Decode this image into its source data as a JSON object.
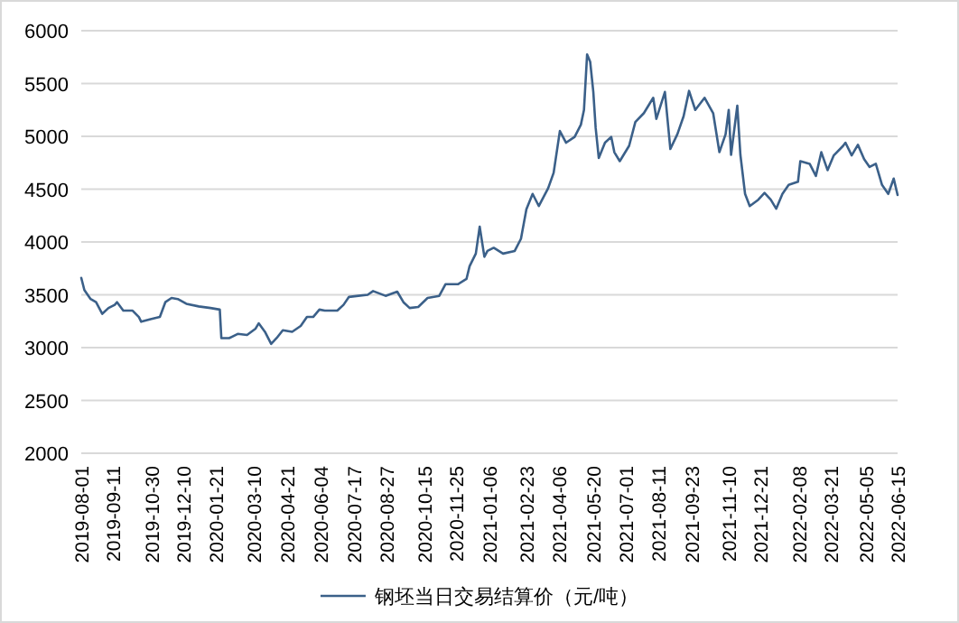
{
  "chart_data": {
    "type": "line",
    "xlim": [
      "2019-08-01",
      "2022-06-15"
    ],
    "ylim": [
      2000,
      6000
    ],
    "yticks": [
      2000,
      2500,
      3000,
      3500,
      4000,
      4500,
      5000,
      5500,
      6000
    ],
    "xticks": [
      "2019-08-01",
      "2019-09-11",
      "2019-10-30",
      "2019-12-10",
      "2020-01-21",
      "2020-03-10",
      "2020-04-21",
      "2020-06-04",
      "2020-07-17",
      "2020-08-27",
      "2020-10-15",
      "2020-11-25",
      "2021-01-06",
      "2021-02-23",
      "2021-04-06",
      "2021-05-20",
      "2021-07-01",
      "2021-08-11",
      "2021-09-23",
      "2021-11-10",
      "2021-12-21",
      "2022-02-08",
      "2022-03-21",
      "2022-05-05",
      "2022-06-15"
    ],
    "grid": "y",
    "legend": "bottom",
    "x": [
      "2019-08-01",
      "2019-08-05",
      "2019-08-13",
      "2019-08-20",
      "2019-08-28",
      "2019-09-05",
      "2019-09-13",
      "2019-09-16",
      "2019-09-24",
      "2019-10-06",
      "2019-10-14",
      "2019-10-17",
      "2019-10-29",
      "2019-11-10",
      "2019-11-17",
      "2019-11-25",
      "2019-12-03",
      "2019-12-14",
      "2019-12-30",
      "2020-01-14",
      "2020-01-26",
      "2020-01-28",
      "2020-02-07",
      "2020-02-18",
      "2020-03-01",
      "2020-03-12",
      "2020-03-16",
      "2020-03-24",
      "2020-04-01",
      "2020-04-08",
      "2020-04-16",
      "2020-04-28",
      "2020-05-09",
      "2020-05-17",
      "2020-05-25",
      "2020-06-02",
      "2020-06-09",
      "2020-06-25",
      "2020-07-03",
      "2020-07-10",
      "2020-07-22",
      "2020-08-03",
      "2020-08-10",
      "2020-08-26",
      "2020-09-10",
      "2020-09-18",
      "2020-09-26",
      "2020-10-07",
      "2020-10-19",
      "2020-11-03",
      "2020-11-11",
      "2020-11-27",
      "2020-12-08",
      "2020-12-12",
      "2020-12-20",
      "2020-12-25",
      "2020-12-31",
      "2021-01-04",
      "2021-01-12",
      "2021-01-24",
      "2021-02-08",
      "2021-02-16",
      "2021-02-23",
      "2021-03-03",
      "2021-03-11",
      "2021-03-23",
      "2021-03-30",
      "2021-04-07",
      "2021-04-15",
      "2021-04-26",
      "2021-05-04",
      "2021-05-08",
      "2021-05-12",
      "2021-05-16",
      "2021-05-20",
      "2021-05-23",
      "2021-05-27",
      "2021-06-04",
      "2021-06-12",
      "2021-06-16",
      "2021-06-23",
      "2021-07-05",
      "2021-07-13",
      "2021-07-24",
      "2021-08-05",
      "2021-08-09",
      "2021-08-20",
      "2021-08-27",
      "2021-09-05",
      "2021-09-13",
      "2021-09-20",
      "2021-09-28",
      "2021-10-10",
      "2021-10-21",
      "2021-10-29",
      "2021-11-06",
      "2021-11-10",
      "2021-11-13",
      "2021-11-21",
      "2021-11-25",
      "2021-12-01",
      "2021-12-07",
      "2021-12-18",
      "2021-12-26",
      "2022-01-03",
      "2022-01-10",
      "2022-01-18",
      "2022-01-26",
      "2022-02-07",
      "2022-02-10",
      "2022-02-22",
      "2022-03-02",
      "2022-03-09",
      "2022-03-17",
      "2022-03-25",
      "2022-04-06",
      "2022-04-09",
      "2022-04-17",
      "2022-04-25",
      "2022-05-03",
      "2022-05-10",
      "2022-05-18",
      "2022-05-26",
      "2022-06-03",
      "2022-06-10",
      "2022-06-15"
    ],
    "series": [
      {
        "name": "钢坯当日交易结算价（元/吨）",
        "color": "#3b6089",
        "values": [
          3660,
          3545,
          3460,
          3430,
          3320,
          3375,
          3405,
          3430,
          3350,
          3350,
          3290,
          3245,
          3270,
          3290,
          3430,
          3470,
          3460,
          3415,
          3390,
          3375,
          3360,
          3090,
          3090,
          3130,
          3120,
          3180,
          3230,
          3150,
          3035,
          3090,
          3165,
          3150,
          3205,
          3290,
          3290,
          3360,
          3350,
          3350,
          3405,
          3480,
          3490,
          3500,
          3535,
          3490,
          3530,
          3430,
          3375,
          3385,
          3470,
          3490,
          3600,
          3600,
          3650,
          3770,
          3890,
          4145,
          3860,
          3915,
          3945,
          3890,
          3915,
          4030,
          4310,
          4455,
          4340,
          4510,
          4655,
          5050,
          4940,
          4995,
          5110,
          5250,
          5775,
          5705,
          5420,
          5080,
          4795,
          4940,
          4995,
          4850,
          4765,
          4910,
          5135,
          5220,
          5365,
          5165,
          5420,
          4880,
          5020,
          5190,
          5430,
          5250,
          5365,
          5220,
          4850,
          5020,
          5250,
          4825,
          5290,
          4825,
          4455,
          4340,
          4400,
          4465,
          4400,
          4315,
          4455,
          4540,
          4570,
          4765,
          4740,
          4625,
          4850,
          4680,
          4820,
          4910,
          4940,
          4820,
          4920,
          4785,
          4710,
          4740,
          4540,
          4455,
          4600,
          4445
        ]
      }
    ]
  }
}
